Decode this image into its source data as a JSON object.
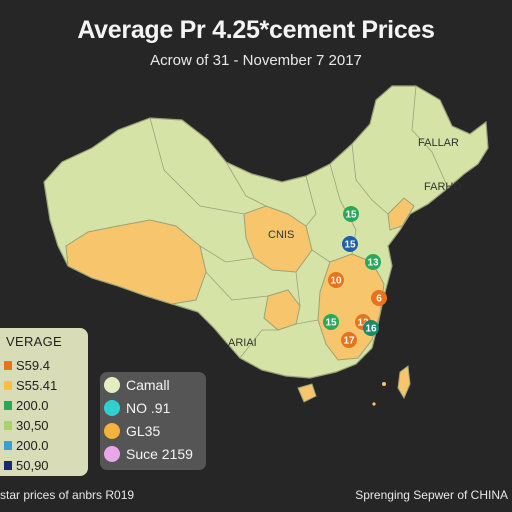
{
  "header": {
    "title": "Average Pr 4.25*cement Prices",
    "subtitle": "Acrow of 31 - November 7 2017"
  },
  "map": {
    "labels": [
      "FALLAR",
      "FARHD",
      "CNIS",
      "ARIAI"
    ],
    "markers": [
      {
        "label": "15",
        "color": "#2aa85a"
      },
      {
        "label": "15",
        "color": "#1f5fa8"
      },
      {
        "label": "13",
        "color": "#2aa85a"
      },
      {
        "label": "10",
        "color": "#e8731e"
      },
      {
        "label": "6",
        "color": "#e8731e"
      },
      {
        "label": "15",
        "color": "#2aa85a"
      },
      {
        "label": "12",
        "color": "#e8731e"
      },
      {
        "label": "16",
        "color": "#1a8a6a"
      },
      {
        "label": "17",
        "color": "#e8731e"
      }
    ],
    "colors": {
      "land": "#d6e3a6",
      "highlight": "#f7c66c",
      "border": "#9aa27a",
      "sea": "#262626"
    }
  },
  "legend_left": {
    "title": "VERAGE",
    "items": [
      {
        "label": "S59.4",
        "color": "#e8731e"
      },
      {
        "label": "S55.41",
        "color": "#f5c040"
      },
      {
        "label": "200.0",
        "color": "#2aa85a"
      },
      {
        "label": "30,50",
        "color": "#a6d36a"
      },
      {
        "label": "200.0",
        "color": "#3aa0d0"
      },
      {
        "label": "50,90",
        "color": "#1b2a6a"
      }
    ]
  },
  "legend_mid": {
    "items": [
      {
        "label": "Camall",
        "color": "#e3eec0"
      },
      {
        "label": "NO .91",
        "color": "#30d0d0"
      },
      {
        "label": "GL35",
        "color": "#f3b23a"
      },
      {
        "label": "Suce 2159",
        "color": "#e8a8e8"
      }
    ]
  },
  "footer": {
    "source": "star prices of anbrs R019",
    "credit": "Sprenging Sepwer of CHINA"
  }
}
